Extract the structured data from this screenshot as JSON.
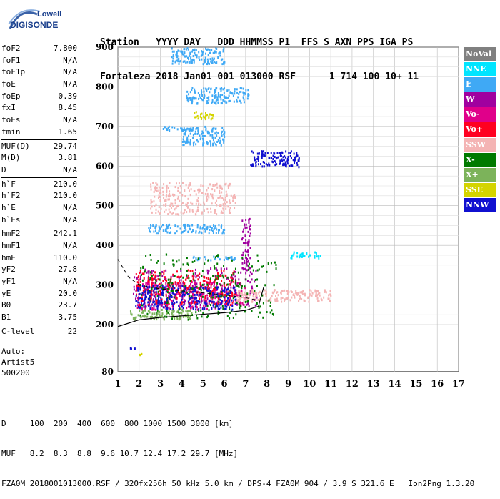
{
  "logo": {
    "top": "Lowell",
    "bottom": "DIGISONDE"
  },
  "header": {
    "line1": "Station   YYYY DAY   DDD HHMMSS P1  FFS S AXN PPS IGA PS",
    "line2": "Fortaleza 2018 Jan01 001 013000 RSF      1 714 100 10+ 11"
  },
  "params": [
    [
      {
        "k": "foF2",
        "v": "7.800"
      },
      {
        "k": "foF1",
        "v": "N/A"
      },
      {
        "k": "foF1p",
        "v": "N/A"
      },
      {
        "k": "foE",
        "v": "N/A"
      },
      {
        "k": "foEp",
        "v": "0.39"
      },
      {
        "k": "fxI",
        "v": "8.45"
      },
      {
        "k": "foEs",
        "v": "N/A"
      },
      {
        "k": "fmin",
        "v": "1.65"
      }
    ],
    [
      {
        "k": "MUF(D)",
        "v": "29.74"
      },
      {
        "k": "M(D)",
        "v": "3.81"
      },
      {
        "k": "D",
        "v": "N/A"
      }
    ],
    [
      {
        "k": "h`F",
        "v": "210.0"
      },
      {
        "k": "h`F2",
        "v": "210.0"
      },
      {
        "k": "h`E",
        "v": "N/A"
      },
      {
        "k": "h`Es",
        "v": "N/A"
      }
    ],
    [
      {
        "k": "hmF2",
        "v": "242.1"
      },
      {
        "k": "hmF1",
        "v": "N/A"
      },
      {
        "k": "hmE",
        "v": "110.0"
      },
      {
        "k": "yF2",
        "v": "27.8"
      },
      {
        "k": "yF1",
        "v": "N/A"
      },
      {
        "k": "yE",
        "v": "20.0"
      },
      {
        "k": "B0",
        "v": "23.7"
      },
      {
        "k": "B1",
        "v": "3.75"
      }
    ],
    [
      {
        "k": "C-level",
        "v": "22"
      }
    ]
  ],
  "auto": {
    "line1": "Auto:",
    "line2": "Artist5",
    "line3": "500200"
  },
  "legend": [
    {
      "label": "NoVal",
      "color": "#808080",
      "text": "#ffffff"
    },
    {
      "label": "NNE",
      "color": "#00e5ff",
      "text": "#ffffff"
    },
    {
      "label": "E",
      "color": "#3fa9f5",
      "text": "#ffffff"
    },
    {
      "label": "W",
      "color": "#a0009f",
      "text": "#ffffff"
    },
    {
      "label": "Vo-",
      "color": "#e0008a",
      "text": "#ffffff"
    },
    {
      "label": "Vo+",
      "color": "#ff0020",
      "text": "#ffffff"
    },
    {
      "label": "SSW",
      "color": "#f4b4b4",
      "text": "#ffffff"
    },
    {
      "label": "X-",
      "color": "#007a00",
      "text": "#ffffff"
    },
    {
      "label": "X+",
      "color": "#7cb35a",
      "text": "#ffffff"
    },
    {
      "label": "SSE",
      "color": "#d4d400",
      "text": "#ffffff"
    },
    {
      "label": "NNW",
      "color": "#1010d0",
      "text": "#ffffff"
    }
  ],
  "footer": {
    "line1": "D     100  200  400  600  800 1000 1500 3000 [km]",
    "line2": "MUF   8.2  8.3  8.8  9.6 10.7 12.4 17.2 29.7 [MHz]",
    "line3": "FZA0M_2018001013000.RSF / 320fx256h 50 kHz 5.0 km / DPS-4 FZA0M 904 / 3.9 S 321.6 E   Ion2Png 1.3.20"
  },
  "chart_data": {
    "type": "scatter",
    "title": "",
    "xlabel": "",
    "ylabel": "",
    "xlim": [
      1,
      17
    ],
    "ylim": [
      80,
      900
    ],
    "x_ticks": [
      1,
      2,
      3,
      4,
      5,
      6,
      7,
      8,
      9,
      10,
      11,
      12,
      13,
      14,
      15,
      16,
      17
    ],
    "y_ticks": [
      80,
      200,
      300,
      400,
      500,
      600,
      700,
      800,
      900
    ],
    "grid": true,
    "series": [
      {
        "name": "E",
        "clusters": [
          {
            "x": [
              3.0,
              5.2
            ],
            "y": [
              692,
              702
            ]
          },
          {
            "x": [
              4.2,
              7.2
            ],
            "y": [
              760,
              800
            ]
          },
          {
            "x": [
              3.5,
              6.0
            ],
            "y": [
              860,
              900
            ]
          },
          {
            "x": [
              2.4,
              6.0
            ],
            "y": [
              432,
              455
            ]
          },
          {
            "x": [
              4.5,
              6.5
            ],
            "y": [
              365,
              375
            ]
          },
          {
            "x": [
              4.0,
              6.0
            ],
            "y": [
              655,
              700
            ]
          }
        ]
      },
      {
        "name": "NNE",
        "clusters": [
          {
            "x": [
              9.0,
              10.5
            ],
            "y": [
              370,
              385
            ]
          }
        ]
      },
      {
        "name": "W",
        "clusters": [
          {
            "x": [
              1.7,
              7.5
            ],
            "y": [
              250,
              345
            ]
          },
          {
            "x": [
              6.8,
              7.2
            ],
            "y": [
              340,
              470
            ]
          }
        ]
      },
      {
        "name": "Vo-",
        "clusters": [
          {
            "x": [
              1.8,
              7.0
            ],
            "y": [
              240,
              310
            ]
          }
        ]
      },
      {
        "name": "Vo+",
        "clusters": [
          {
            "x": [
              1.8,
              6.5
            ],
            "y": [
              250,
              340
            ]
          }
        ]
      },
      {
        "name": "SSW",
        "clusters": [
          {
            "x": [
              6.5,
              11.0
            ],
            "y": [
              260,
              290
            ]
          },
          {
            "x": [
              2.5,
              6.5
            ],
            "y": [
              480,
              560
            ]
          }
        ]
      },
      {
        "name": "X-",
        "clusters": [
          {
            "x": [
              2.0,
              8.4
            ],
            "y": [
              215,
              380
            ]
          }
        ]
      },
      {
        "name": "X+",
        "clusters": [
          {
            "x": [
              1.5,
              4.5
            ],
            "y": [
              215,
              240
            ]
          }
        ]
      },
      {
        "name": "SSE",
        "clusters": [
          {
            "x": [
              4.5,
              5.5
            ],
            "y": [
              720,
              740
            ]
          },
          {
            "x": [
              2.0,
              2.1
            ],
            "y": [
              125,
              128
            ]
          }
        ]
      },
      {
        "name": "NNW",
        "clusters": [
          {
            "x": [
              1.8,
              6.5
            ],
            "y": [
              240,
              300
            ]
          },
          {
            "x": [
              7.2,
              9.5
            ],
            "y": [
              600,
              640
            ]
          },
          {
            "x": [
              1.5,
              1.8
            ],
            "y": [
              140,
              144
            ]
          }
        ]
      }
    ],
    "profile_curve": {
      "x": [
        1.0,
        2.0,
        3.0,
        4.0,
        5.0,
        6.0,
        7.0,
        7.6,
        7.85
      ],
      "y": [
        195,
        212,
        218,
        222,
        226,
        230,
        236,
        246,
        295
      ]
    },
    "profile_curve_dashed": {
      "x": [
        1.0,
        1.5,
        2.0,
        3.0,
        4.0,
        5.0,
        6.0,
        7.0,
        7.5
      ],
      "y": [
        365,
        320,
        300,
        290,
        285,
        280,
        275,
        268,
        262
      ]
    }
  }
}
